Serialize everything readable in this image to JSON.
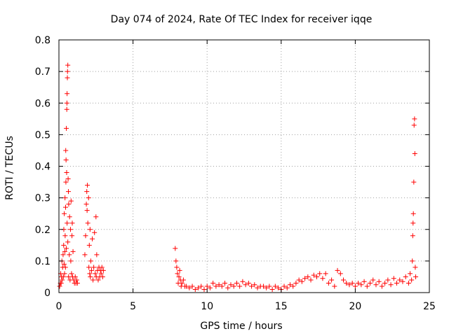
{
  "chart_data": {
    "type": "scatter",
    "title": "Day 074 of 2024, Rate Of TEC Index for receiver iqqe",
    "xlabel": "GPS time / hours",
    "ylabel": "ROTI / TECUs",
    "xlim": [
      0,
      25
    ],
    "ylim": [
      0,
      0.8
    ],
    "xticks": [
      0,
      5,
      10,
      15,
      20,
      25
    ],
    "xtick_labels": [
      "0",
      "5",
      "10",
      "15",
      "20",
      "25"
    ],
    "yticks": [
      0,
      0.1,
      0.2,
      0.3,
      0.4,
      0.5,
      0.6,
      0.7,
      0.8
    ],
    "ytick_labels": [
      "0",
      "0.1",
      "0.2",
      "0.3",
      "0.4",
      "0.5",
      "0.6",
      "0.7",
      "0.8"
    ],
    "grid": true,
    "marker": "+",
    "color": "#ff0000",
    "series": [
      {
        "name": "ROTI",
        "points": [
          [
            0.05,
            0.02
          ],
          [
            0.1,
            0.03
          ],
          [
            0.12,
            0.06
          ],
          [
            0.15,
            0.03
          ],
          [
            0.18,
            0.05
          ],
          [
            0.2,
            0.1
          ],
          [
            0.22,
            0.04
          ],
          [
            0.25,
            0.08
          ],
          [
            0.28,
            0.12
          ],
          [
            0.3,
            0.05
          ],
          [
            0.32,
            0.15
          ],
          [
            0.33,
            0.2
          ],
          [
            0.35,
            0.09
          ],
          [
            0.36,
            0.25
          ],
          [
            0.38,
            0.06
          ],
          [
            0.4,
            0.13
          ],
          [
            0.41,
            0.3
          ],
          [
            0.42,
            0.18
          ],
          [
            0.44,
            0.08
          ],
          [
            0.45,
            0.27
          ],
          [
            0.46,
            0.45
          ],
          [
            0.47,
            0.35
          ],
          [
            0.48,
            0.42
          ],
          [
            0.5,
            0.52
          ],
          [
            0.5,
            0.14
          ],
          [
            0.52,
            0.38
          ],
          [
            0.53,
            0.58
          ],
          [
            0.54,
            0.6
          ],
          [
            0.55,
            0.22
          ],
          [
            0.55,
            0.63
          ],
          [
            0.57,
            0.68
          ],
          [
            0.58,
            0.7
          ],
          [
            0.6,
            0.72
          ],
          [
            0.6,
            0.16
          ],
          [
            0.62,
            0.36
          ],
          [
            0.64,
            0.32
          ],
          [
            0.65,
            0.05
          ],
          [
            0.66,
            0.28
          ],
          [
            0.7,
            0.12
          ],
          [
            0.72,
            0.24
          ],
          [
            0.75,
            0.04
          ],
          [
            0.78,
            0.2
          ],
          [
            0.8,
            0.1
          ],
          [
            0.82,
            0.29
          ],
          [
            0.85,
            0.06
          ],
          [
            0.88,
            0.18
          ],
          [
            0.9,
            0.22
          ],
          [
            0.92,
            0.05
          ],
          [
            0.95,
            0.13
          ],
          [
            1.0,
            0.04
          ],
          [
            1.05,
            0.03
          ],
          [
            1.1,
            0.05
          ],
          [
            1.15,
            0.03
          ],
          [
            1.2,
            0.04
          ],
          [
            1.25,
            0.03
          ],
          [
            1.75,
            0.12
          ],
          [
            1.8,
            0.18
          ],
          [
            1.85,
            0.28
          ],
          [
            1.88,
            0.32
          ],
          [
            1.9,
            0.26
          ],
          [
            1.92,
            0.34
          ],
          [
            1.95,
            0.22
          ],
          [
            2.0,
            0.3
          ],
          [
            2.02,
            0.08
          ],
          [
            2.05,
            0.15
          ],
          [
            2.08,
            0.06
          ],
          [
            2.1,
            0.2
          ],
          [
            2.12,
            0.05
          ],
          [
            2.15,
            0.1
          ],
          [
            2.2,
            0.07
          ],
          [
            2.25,
            0.17
          ],
          [
            2.3,
            0.04
          ],
          [
            2.35,
            0.08
          ],
          [
            2.4,
            0.19
          ],
          [
            2.45,
            0.06
          ],
          [
            2.5,
            0.24
          ],
          [
            2.52,
            0.05
          ],
          [
            2.55,
            0.12
          ],
          [
            2.6,
            0.07
          ],
          [
            2.65,
            0.04
          ],
          [
            2.7,
            0.08
          ],
          [
            2.75,
            0.05
          ],
          [
            2.8,
            0.07
          ],
          [
            2.85,
            0.06
          ],
          [
            2.9,
            0.08
          ],
          [
            2.95,
            0.05
          ],
          [
            3.0,
            0.07
          ],
          [
            7.85,
            0.14
          ],
          [
            7.9,
            0.1
          ],
          [
            7.95,
            0.08
          ],
          [
            8.0,
            0.06
          ],
          [
            8.05,
            0.03
          ],
          [
            8.1,
            0.05
          ],
          [
            8.15,
            0.07
          ],
          [
            8.2,
            0.04
          ],
          [
            8.25,
            0.02
          ],
          [
            8.3,
            0.03
          ],
          [
            8.4,
            0.04
          ],
          [
            8.5,
            0.02
          ],
          [
            8.6,
            0.02
          ],
          [
            8.8,
            0.015
          ],
          [
            9.0,
            0.02
          ],
          [
            9.2,
            0.01
          ],
          [
            9.4,
            0.015
          ],
          [
            9.6,
            0.02
          ],
          [
            9.8,
            0.01
          ],
          [
            10.0,
            0.02
          ],
          [
            10.2,
            0.015
          ],
          [
            10.4,
            0.03
          ],
          [
            10.6,
            0.02
          ],
          [
            10.8,
            0.025
          ],
          [
            11.0,
            0.02
          ],
          [
            11.2,
            0.03
          ],
          [
            11.4,
            0.015
          ],
          [
            11.6,
            0.025
          ],
          [
            11.8,
            0.02
          ],
          [
            12.0,
            0.03
          ],
          [
            12.2,
            0.02
          ],
          [
            12.4,
            0.035
          ],
          [
            12.6,
            0.025
          ],
          [
            12.8,
            0.03
          ],
          [
            13.0,
            0.02
          ],
          [
            13.2,
            0.025
          ],
          [
            13.4,
            0.015
          ],
          [
            13.6,
            0.02
          ],
          [
            13.8,
            0.02
          ],
          [
            14.0,
            0.015
          ],
          [
            14.2,
            0.02
          ],
          [
            14.4,
            0.01
          ],
          [
            14.6,
            0.02
          ],
          [
            14.8,
            0.015
          ],
          [
            15.0,
            0.01
          ],
          [
            15.2,
            0.02
          ],
          [
            15.4,
            0.015
          ],
          [
            15.6,
            0.025
          ],
          [
            15.8,
            0.02
          ],
          [
            16.0,
            0.03
          ],
          [
            16.2,
            0.04
          ],
          [
            16.4,
            0.035
          ],
          [
            16.6,
            0.045
          ],
          [
            16.8,
            0.05
          ],
          [
            17.0,
            0.04
          ],
          [
            17.2,
            0.055
          ],
          [
            17.4,
            0.05
          ],
          [
            17.6,
            0.06
          ],
          [
            17.8,
            0.045
          ],
          [
            18.0,
            0.06
          ],
          [
            18.2,
            0.03
          ],
          [
            18.4,
            0.04
          ],
          [
            18.6,
            0.02
          ],
          [
            18.8,
            0.07
          ],
          [
            19.0,
            0.06
          ],
          [
            19.2,
            0.04
          ],
          [
            19.4,
            0.03
          ],
          [
            19.6,
            0.025
          ],
          [
            19.8,
            0.03
          ],
          [
            20.0,
            0.02
          ],
          [
            20.2,
            0.03
          ],
          [
            20.4,
            0.025
          ],
          [
            20.6,
            0.035
          ],
          [
            20.8,
            0.02
          ],
          [
            21.0,
            0.03
          ],
          [
            21.2,
            0.04
          ],
          [
            21.4,
            0.025
          ],
          [
            21.6,
            0.035
          ],
          [
            21.8,
            0.02
          ],
          [
            22.0,
            0.03
          ],
          [
            22.2,
            0.04
          ],
          [
            22.4,
            0.025
          ],
          [
            22.6,
            0.045
          ],
          [
            22.8,
            0.03
          ],
          [
            23.0,
            0.04
          ],
          [
            23.2,
            0.035
          ],
          [
            23.4,
            0.05
          ],
          [
            23.6,
            0.03
          ],
          [
            23.7,
            0.06
          ],
          [
            23.8,
            0.04
          ],
          [
            23.85,
            0.1
          ],
          [
            23.88,
            0.18
          ],
          [
            23.9,
            0.22
          ],
          [
            23.92,
            0.25
          ],
          [
            23.95,
            0.35
          ],
          [
            23.97,
            0.53
          ],
          [
            24.0,
            0.55
          ],
          [
            24.02,
            0.44
          ],
          [
            24.05,
            0.08
          ],
          [
            24.08,
            0.05
          ]
        ]
      }
    ]
  }
}
